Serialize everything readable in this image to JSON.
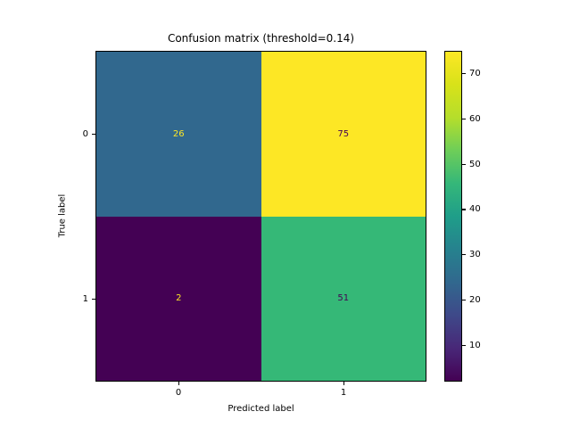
{
  "chart": {
    "title": "Confusion matrix (threshold=0.14)",
    "xlabel": "Predicted label",
    "ylabel": "True label"
  },
  "chart_data": {
    "type": "heatmap",
    "title": "Confusion matrix (threshold=0.14)",
    "xlabel": "Predicted label",
    "ylabel": "True label",
    "x_tick_labels": [
      "0",
      "1"
    ],
    "y_tick_labels": [
      "0",
      "1"
    ],
    "matrix": [
      [
        26,
        75
      ],
      [
        2,
        51
      ]
    ],
    "colormap": "viridis",
    "vmin": 2,
    "vmax": 75,
    "colorbar_ticks": [
      10,
      20,
      30,
      40,
      50,
      60,
      70
    ],
    "cell_colors": [
      [
        "#31688e",
        "#fde725"
      ],
      [
        "#440154",
        "#35b877"
      ]
    ],
    "cell_text_colors": [
      [
        "#fde725",
        "#440154"
      ],
      [
        "#fde725",
        "#440154"
      ]
    ],
    "viridis_gradient": [
      "#440154",
      "#482878",
      "#3e4989",
      "#31688e",
      "#26828e",
      "#1f9e89",
      "#35b779",
      "#6ece58",
      "#b5de2b",
      "#d8e219",
      "#fde725"
    ],
    "grid": false,
    "legend_position": "right-colorbar",
    "axes_bg": "#ffffff"
  }
}
